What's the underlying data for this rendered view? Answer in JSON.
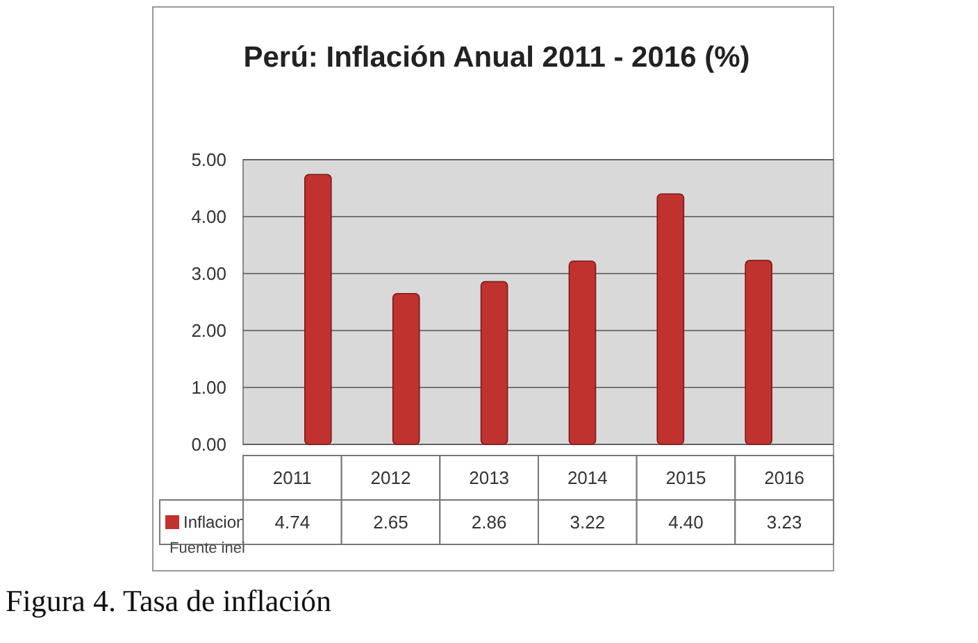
{
  "chart_data": {
    "type": "bar",
    "title": "Perú: Inflación Anual 2011 - 2016 (%)",
    "categories": [
      "2011",
      "2012",
      "2013",
      "2014",
      "2015",
      "2016"
    ],
    "series": [
      {
        "name": "Inflacion",
        "color": "#c0322e",
        "values": [
          4.74,
          2.65,
          2.86,
          3.22,
          4.4,
          3.23
        ],
        "value_labels": [
          "4.74",
          "2.65",
          "2.86",
          "3.22",
          "4.40",
          "3.23"
        ]
      }
    ],
    "ylim": [
      0,
      5
    ],
    "yticks": [
      {
        "value": 0,
        "label": "0.00"
      },
      {
        "value": 1,
        "label": "1.00"
      },
      {
        "value": 2,
        "label": "2.00"
      },
      {
        "value": 3,
        "label": "3.00"
      },
      {
        "value": 4,
        "label": "4.00"
      },
      {
        "value": 5,
        "label": "5.00"
      }
    ],
    "grid": "y",
    "legend": "bottom",
    "annotations": [
      "Fuente inei",
      "Figura 4. Tasa de inflación"
    ]
  }
}
